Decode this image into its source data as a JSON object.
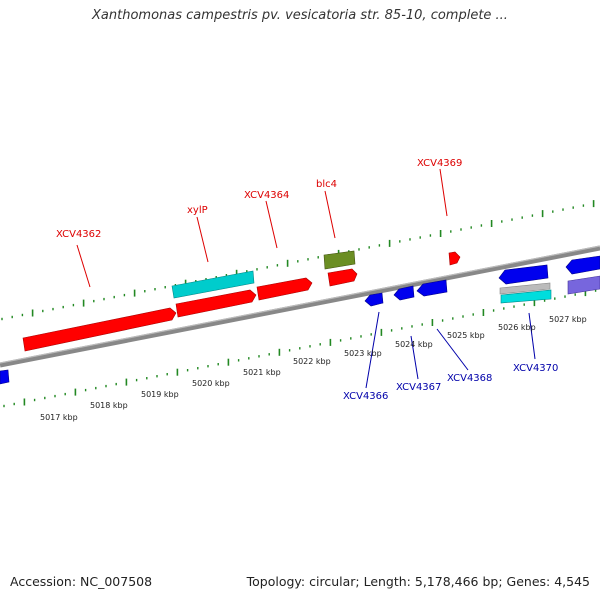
{
  "title": "Xanthomonas campestris pv. vesicatoria str. 85-10, complete ...",
  "footer": {
    "accession": "Accession: NC_007508",
    "summary": "Topology: circular; Length: 5,178,466 bp; Genes: 4,545"
  },
  "colors": {
    "forward_gene": "#ff0000",
    "reverse_gene": "#0000ee",
    "cyan_gene": "#00cccc",
    "olive_gene": "#6b8e23",
    "purple_gene": "#7766dd",
    "gray_gene": "#bbbbbb",
    "backbone": "#888888",
    "tick": "#228822"
  },
  "scale": {
    "unit": "kbp",
    "labels": [
      "5017 kbp",
      "5018 kbp",
      "5019 kbp",
      "5020 kbp",
      "5021 kbp",
      "5022 kbp",
      "5023 kbp",
      "5024 kbp",
      "5025 kbp",
      "5026 kbp",
      "5027 kbp"
    ]
  },
  "top_labels": [
    "XCV4362",
    "xylP",
    "XCV4364",
    "blc4",
    "XCV4369"
  ],
  "bottom_labels": [
    "XCV4366",
    "XCV4367",
    "XCV4368",
    "XCV4370"
  ]
}
